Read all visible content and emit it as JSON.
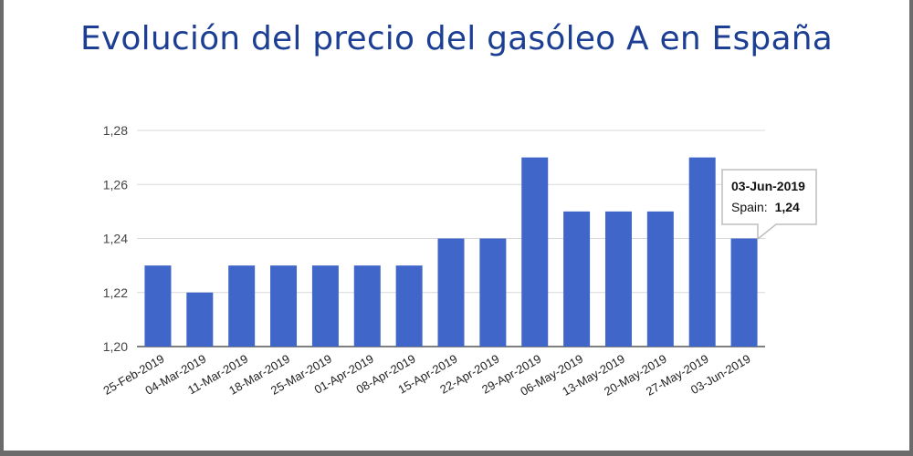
{
  "chart_data": {
    "type": "bar",
    "title": "Evolución del precio del gasóleo A en España",
    "xlabel": "",
    "ylabel": "",
    "ylim": [
      1.2,
      1.28
    ],
    "yticks": [
      "1,20",
      "1,22",
      "1,24",
      "1,26",
      "1,28"
    ],
    "yticks_values": [
      1.2,
      1.22,
      1.24,
      1.26,
      1.28
    ],
    "grid": "horizontal",
    "colors": {
      "bar": "#3f66c8",
      "title": "#1c3f94"
    },
    "categories": [
      "25-Feb-2019",
      "04-Mar-2019",
      "11-Mar-2019",
      "18-Mar-2019",
      "25-Mar-2019",
      "01-Apr-2019",
      "08-Apr-2019",
      "15-Apr-2019",
      "22-Apr-2019",
      "29-Apr-2019",
      "06-May-2019",
      "13-May-2019",
      "20-May-2019",
      "27-May-2019",
      "03-Jun-2019"
    ],
    "series": [
      {
        "name": "Spain",
        "values": [
          1.23,
          1.22,
          1.23,
          1.23,
          1.23,
          1.23,
          1.23,
          1.24,
          1.24,
          1.27,
          1.25,
          1.25,
          1.25,
          1.27,
          1.24
        ]
      }
    ],
    "tooltip": {
      "date": "03-Jun-2019",
      "label": "Spain:",
      "value": "1,24"
    }
  }
}
